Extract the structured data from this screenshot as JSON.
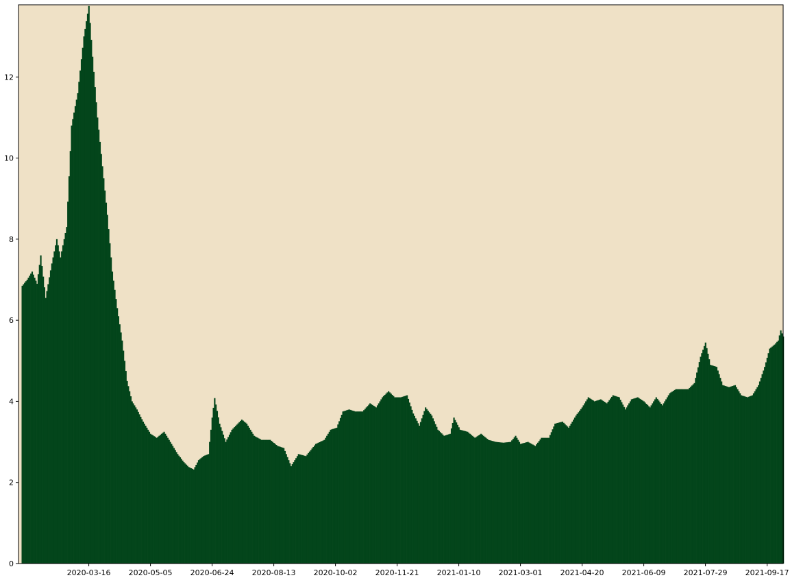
{
  "chart_data": {
    "type": "bar",
    "x_start": "2020-01-22",
    "x_end": "2021-09-30",
    "xlim": [
      "2020-01-19",
      "2021-09-30"
    ],
    "ylim": [
      0,
      13.78
    ],
    "grid": false,
    "colors": {
      "plot_bg": "#efe1c6",
      "bar": "#03451b",
      "axis": "#000000"
    },
    "x_ticks": [
      "2020-03-16",
      "2020-05-05",
      "2020-06-24",
      "2020-08-13",
      "2020-10-02",
      "2020-11-21",
      "2021-01-10",
      "2021-03-01",
      "2021-04-20",
      "2021-06-09",
      "2021-07-29",
      "2021-09-17"
    ],
    "y_ticks": [
      0,
      2,
      4,
      6,
      8,
      10,
      12
    ],
    "anchors": [
      [
        "2020-01-22",
        6.85
      ],
      [
        "2020-01-26",
        7.0
      ],
      [
        "2020-01-30",
        7.2
      ],
      [
        "2020-02-03",
        6.9
      ],
      [
        "2020-02-06",
        7.6
      ],
      [
        "2020-02-10",
        6.55
      ],
      [
        "2020-02-15",
        7.4
      ],
      [
        "2020-02-19",
        8.0
      ],
      [
        "2020-02-22",
        7.55
      ],
      [
        "2020-02-27",
        8.3
      ],
      [
        "2020-03-02",
        10.8
      ],
      [
        "2020-03-07",
        11.6
      ],
      [
        "2020-03-12",
        13.0
      ],
      [
        "2020-03-16",
        13.75
      ],
      [
        "2020-03-19",
        12.5
      ],
      [
        "2020-03-23",
        11.0
      ],
      [
        "2020-03-27",
        9.8
      ],
      [
        "2020-03-31",
        8.6
      ],
      [
        "2020-04-04",
        7.2
      ],
      [
        "2020-04-08",
        6.3
      ],
      [
        "2020-04-12",
        5.5
      ],
      [
        "2020-04-16",
        4.5
      ],
      [
        "2020-04-20",
        4.0
      ],
      [
        "2020-04-24",
        3.8
      ],
      [
        "2020-04-29",
        3.5
      ],
      [
        "2020-05-05",
        3.2
      ],
      [
        "2020-05-10",
        3.1
      ],
      [
        "2020-05-16",
        3.25
      ],
      [
        "2020-05-21",
        3.0
      ],
      [
        "2020-05-27",
        2.7
      ],
      [
        "2020-06-01",
        2.5
      ],
      [
        "2020-06-05",
        2.38
      ],
      [
        "2020-06-09",
        2.32
      ],
      [
        "2020-06-13",
        2.55
      ],
      [
        "2020-06-17",
        2.65
      ],
      [
        "2020-06-21",
        2.7
      ],
      [
        "2020-06-24",
        3.6
      ],
      [
        "2020-06-26",
        4.08
      ],
      [
        "2020-06-30",
        3.45
      ],
      [
        "2020-07-05",
        3.0
      ],
      [
        "2020-07-10",
        3.3
      ],
      [
        "2020-07-18",
        3.55
      ],
      [
        "2020-07-22",
        3.45
      ],
      [
        "2020-07-28",
        3.15
      ],
      [
        "2020-08-03",
        3.05
      ],
      [
        "2020-08-10",
        3.05
      ],
      [
        "2020-08-16",
        2.9
      ],
      [
        "2020-08-21",
        2.85
      ],
      [
        "2020-08-27",
        2.4
      ],
      [
        "2020-09-02",
        2.7
      ],
      [
        "2020-09-08",
        2.65
      ],
      [
        "2020-09-16",
        2.95
      ],
      [
        "2020-09-23",
        3.05
      ],
      [
        "2020-09-28",
        3.3
      ],
      [
        "2020-10-03",
        3.35
      ],
      [
        "2020-10-08",
        3.75
      ],
      [
        "2020-10-13",
        3.8
      ],
      [
        "2020-10-18",
        3.75
      ],
      [
        "2020-10-24",
        3.75
      ],
      [
        "2020-10-30",
        3.95
      ],
      [
        "2020-11-04",
        3.85
      ],
      [
        "2020-11-09",
        4.1
      ],
      [
        "2020-11-14",
        4.25
      ],
      [
        "2020-11-19",
        4.1
      ],
      [
        "2020-11-24",
        4.1
      ],
      [
        "2020-11-29",
        4.15
      ],
      [
        "2020-12-04",
        3.7
      ],
      [
        "2020-12-09",
        3.4
      ],
      [
        "2020-12-14",
        3.85
      ],
      [
        "2020-12-19",
        3.65
      ],
      [
        "2020-12-24",
        3.3
      ],
      [
        "2020-12-29",
        3.15
      ],
      [
        "2021-01-03",
        3.2
      ],
      [
        "2021-01-06",
        3.6
      ],
      [
        "2021-01-11",
        3.3
      ],
      [
        "2021-01-17",
        3.25
      ],
      [
        "2021-01-23",
        3.1
      ],
      [
        "2021-01-28",
        3.2
      ],
      [
        "2021-02-03",
        3.05
      ],
      [
        "2021-02-09",
        3.0
      ],
      [
        "2021-02-15",
        2.98
      ],
      [
        "2021-02-21",
        3.0
      ],
      [
        "2021-02-25",
        3.15
      ],
      [
        "2021-03-01",
        2.95
      ],
      [
        "2021-03-07",
        3.0
      ],
      [
        "2021-03-13",
        2.9
      ],
      [
        "2021-03-18",
        3.1
      ],
      [
        "2021-03-24",
        3.1
      ],
      [
        "2021-03-29",
        3.45
      ],
      [
        "2021-04-04",
        3.5
      ],
      [
        "2021-04-09",
        3.35
      ],
      [
        "2021-04-15",
        3.65
      ],
      [
        "2021-04-20",
        3.85
      ],
      [
        "2021-04-25",
        4.1
      ],
      [
        "2021-04-30",
        4.0
      ],
      [
        "2021-05-05",
        4.05
      ],
      [
        "2021-05-10",
        3.95
      ],
      [
        "2021-05-15",
        4.15
      ],
      [
        "2021-05-20",
        4.1
      ],
      [
        "2021-05-25",
        3.8
      ],
      [
        "2021-05-30",
        4.05
      ],
      [
        "2021-06-04",
        4.1
      ],
      [
        "2021-06-09",
        4.0
      ],
      [
        "2021-06-14",
        3.85
      ],
      [
        "2021-06-19",
        4.1
      ],
      [
        "2021-06-24",
        3.9
      ],
      [
        "2021-06-30",
        4.2
      ],
      [
        "2021-07-05",
        4.3
      ],
      [
        "2021-07-10",
        4.3
      ],
      [
        "2021-07-15",
        4.3
      ],
      [
        "2021-07-20",
        4.45
      ],
      [
        "2021-07-25",
        5.1
      ],
      [
        "2021-07-29",
        5.45
      ],
      [
        "2021-08-02",
        4.9
      ],
      [
        "2021-08-07",
        4.85
      ],
      [
        "2021-08-12",
        4.4
      ],
      [
        "2021-08-17",
        4.35
      ],
      [
        "2021-08-22",
        4.4
      ],
      [
        "2021-08-27",
        4.15
      ],
      [
        "2021-09-01",
        4.1
      ],
      [
        "2021-09-05",
        4.15
      ],
      [
        "2021-09-10",
        4.4
      ],
      [
        "2021-09-15",
        4.85
      ],
      [
        "2021-09-19",
        5.3
      ],
      [
        "2021-09-23",
        5.4
      ],
      [
        "2021-09-26",
        5.5
      ],
      [
        "2021-09-28",
        5.75
      ],
      [
        "2021-09-30",
        5.6
      ]
    ]
  }
}
